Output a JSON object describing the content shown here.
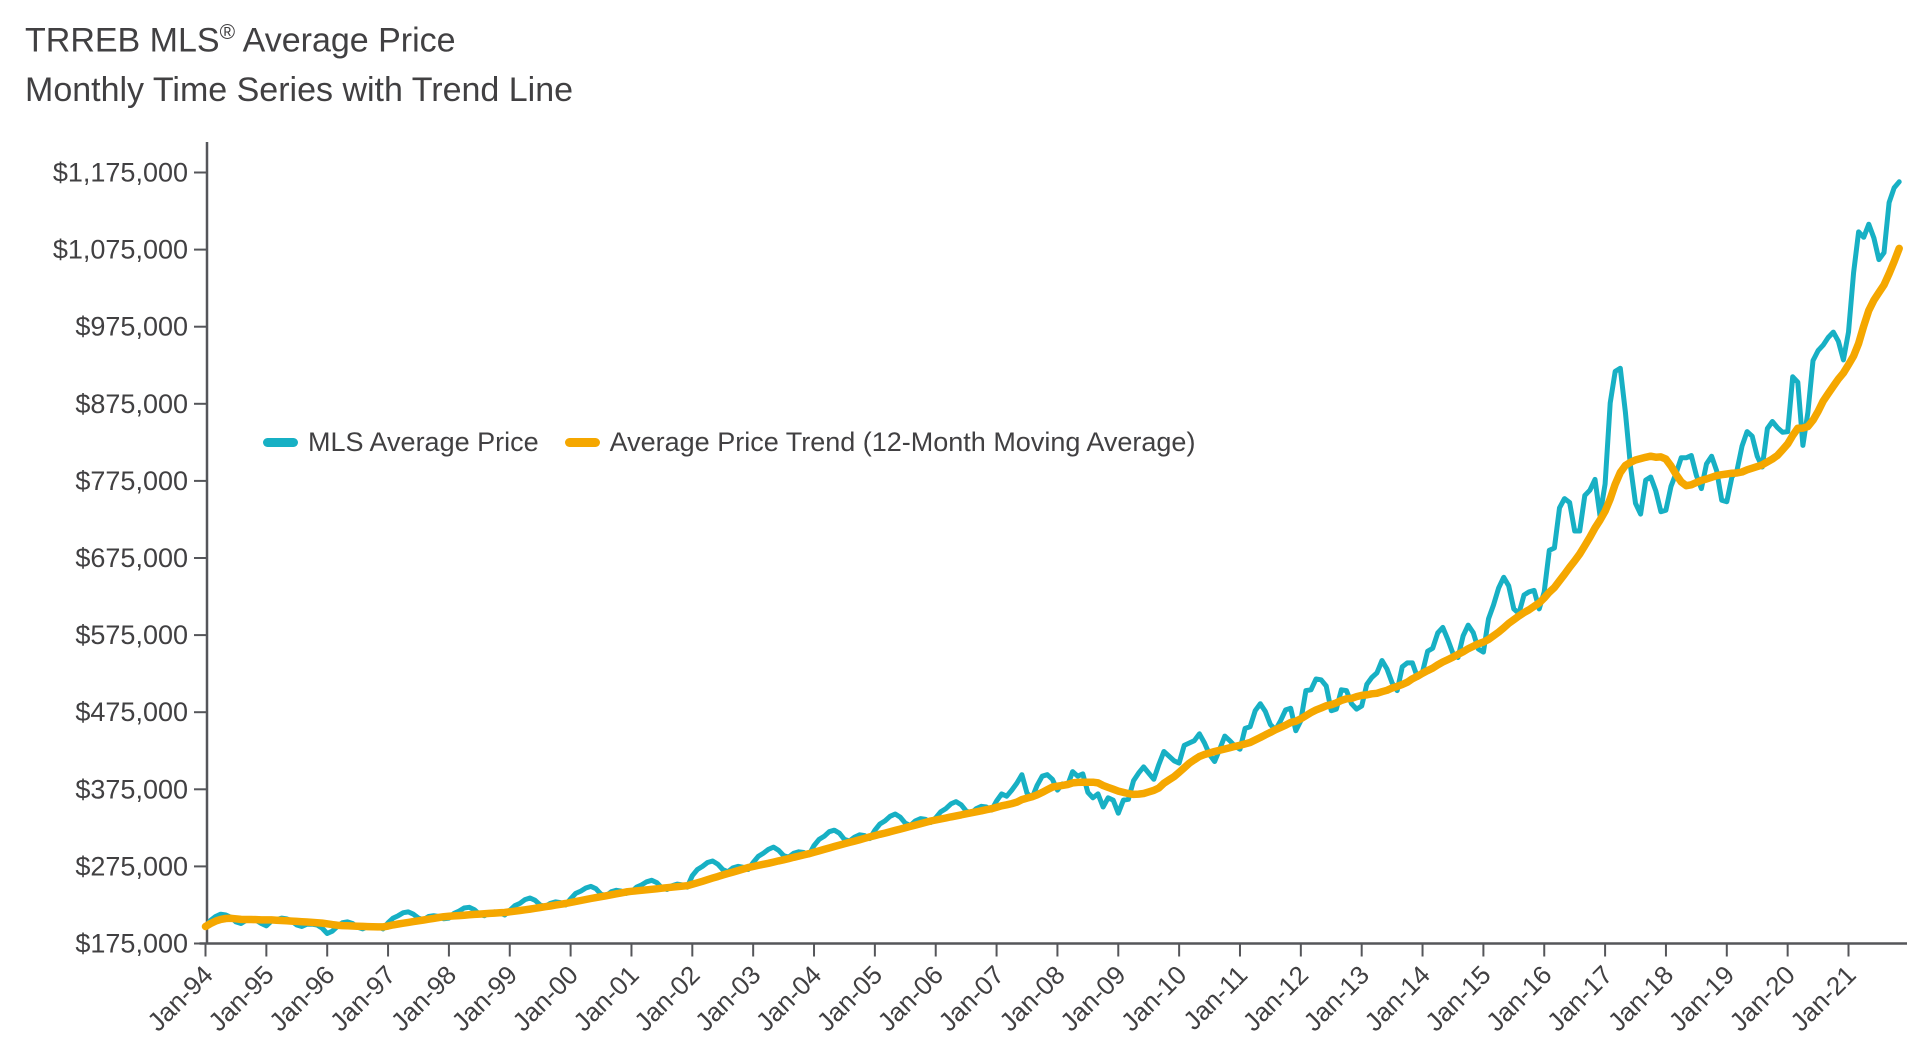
{
  "title": {
    "line1_main": "TRREB MLS",
    "line1_sup": "®",
    "line1_rest": " Average Price",
    "line2": "Monthly Time Series with Trend Line"
  },
  "legend": {
    "items": [
      {
        "label": "MLS Average Price",
        "color": "#17B0C4"
      },
      {
        "label": "Average Price Trend (12-Month Moving Average)",
        "color": "#F5A700"
      }
    ]
  },
  "colors": {
    "mls_line": "#17B0C4",
    "trend_line": "#F5A700",
    "axis": "#55565A",
    "text": "#414042",
    "background": "#FFFFFF"
  },
  "chart_data": {
    "type": "line",
    "title": "TRREB MLS® Average Price",
    "subtitle": "Monthly Time Series with Trend Line",
    "xlabel": "",
    "ylabel": "",
    "x_start": "Jan-1994",
    "x_end": "Nov-2021",
    "x_interval": "monthly",
    "grid": false,
    "legend_position": "inside-upper-left",
    "ylim": [
      175000,
      1175000
    ],
    "y_tick_step": 100000,
    "y_tick_labels": [
      "$175,000",
      "$275,000",
      "$375,000",
      "$475,000",
      "$575,000",
      "$675,000",
      "$775,000",
      "$875,000",
      "$975,000",
      "$1,075,000",
      "$1,175,000"
    ],
    "x_tick_labels": [
      "Jan-94",
      "Jan-95",
      "Jan-96",
      "Jan-97",
      "Jan-98",
      "Jan-99",
      "Jan-00",
      "Jan-01",
      "Jan-02",
      "Jan-03",
      "Jan-04",
      "Jan-05",
      "Jan-06",
      "Jan-07",
      "Jan-08",
      "Jan-09",
      "Jan-10",
      "Jan-11",
      "Jan-12",
      "Jan-13",
      "Jan-14",
      "Jan-15",
      "Jan-16",
      "Jan-17",
      "Jan-18",
      "Jan-19",
      "Jan-20",
      "Jan-21"
    ],
    "series": [
      {
        "name": "MLS Average Price",
        "color": "#17B0C4",
        "values": [
          197000,
          205000,
          210000,
          213000,
          212000,
          209000,
          203000,
          201000,
          205000,
          206000,
          205000,
          201000,
          198000,
          204000,
          206000,
          208000,
          207000,
          204000,
          199000,
          197000,
          200000,
          200000,
          199000,
          195000,
          188000,
          191000,
          197000,
          202000,
          203000,
          201000,
          196000,
          194000,
          197000,
          198000,
          197000,
          194000,
          202000,
          208000,
          211000,
          215000,
          216000,
          213000,
          208000,
          206000,
          210000,
          211000,
          210000,
          207000,
          208000,
          214000,
          217000,
          221000,
          222000,
          219000,
          213000,
          211000,
          215000,
          216000,
          215000,
          212000,
          218000,
          224000,
          227000,
          232000,
          234000,
          231000,
          225000,
          223000,
          227000,
          229000,
          228000,
          225000,
          233000,
          240000,
          243000,
          247000,
          249000,
          246000,
          239000,
          237000,
          242000,
          244000,
          243000,
          240000,
          242000,
          248000,
          251000,
          255000,
          257000,
          254000,
          247000,
          245000,
          250000,
          252000,
          251000,
          248000,
          263000,
          271000,
          275000,
          280000,
          282000,
          278000,
          271000,
          268000,
          273000,
          275000,
          274000,
          271000,
          280000,
          288000,
          292000,
          297000,
          300000,
          296000,
          289000,
          287000,
          292000,
          294000,
          293000,
          290000,
          302000,
          310000,
          314000,
          320000,
          322000,
          318000,
          310000,
          308000,
          313000,
          316000,
          315000,
          311000,
          322000,
          330000,
          334000,
          340000,
          343000,
          339000,
          331000,
          328000,
          334000,
          337000,
          336000,
          332000,
          338000,
          346000,
          350000,
          356000,
          359000,
          355000,
          347000,
          344000,
          350000,
          353000,
          352000,
          348000,
          360000,
          369000,
          366000,
          374000,
          383000,
          394000,
          370000,
          364000,
          380000,
          392000,
          394000,
          388000,
          374000,
          382000,
          380000,
          398000,
          392000,
          395000,
          371000,
          364000,
          369000,
          352000,
          364000,
          361000,
          344000,
          361000,
          362000,
          386000,
          396000,
          404000,
          396000,
          388000,
          407000,
          424000,
          418000,
          412000,
          409000,
          432000,
          435000,
          438000,
          447000,
          435000,
          420000,
          411000,
          427000,
          444000,
          438000,
          431000,
          427000,
          454000,
          456000,
          477000,
          486000,
          476000,
          459000,
          452000,
          464000,
          478000,
          480000,
          451000,
          464000,
          503000,
          504000,
          518000,
          517000,
          509000,
          477000,
          479000,
          504000,
          503000,
          486000,
          479000,
          483000,
          511000,
          520000,
          526000,
          542000,
          531000,
          513000,
          503000,
          534000,
          539000,
          539000,
          520000,
          527000,
          554000,
          558000,
          578000,
          585000,
          569000,
          551000,
          546000,
          574000,
          588000,
          578000,
          557000,
          553000,
          596000,
          614000,
          636000,
          650000,
          639000,
          609000,
          603000,
          627000,
          631000,
          633000,
          609000,
          631000,
          685000,
          688000,
          740000,
          752000,
          747000,
          710000,
          710000,
          756000,
          763000,
          777000,
          730000,
          771000,
          876000,
          917000,
          921000,
          864000,
          794000,
          746000,
          732000,
          776000,
          780000,
          762000,
          735000,
          737000,
          768000,
          785000,
          805000,
          805000,
          808000,
          782000,
          765000,
          797000,
          807000,
          788000,
          750000,
          748000,
          780000,
          788000,
          820000,
          839000,
          833000,
          807000,
          793000,
          843000,
          852000,
          844000,
          838000,
          839000,
          910000,
          903000,
          821000,
          864000,
          931000,
          944000,
          951000,
          961000,
          968000,
          956000,
          932000,
          968000,
          1045000,
          1098000,
          1091000,
          1108000,
          1090000,
          1062000,
          1071000,
          1136000,
          1155000,
          1163000
        ]
      },
      {
        "name": "Average Price Trend (12-Month Moving Average)",
        "color": "#F5A700",
        "derived": "12-month trailing moving average of MLS Average Price (expanding window for the first 11 months)"
      }
    ]
  }
}
